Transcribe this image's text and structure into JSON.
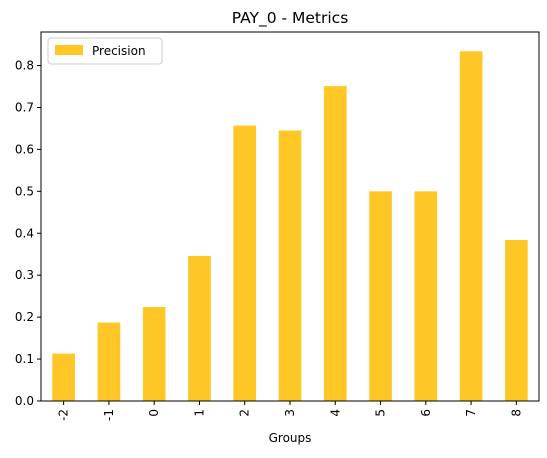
{
  "chart_data": {
    "type": "bar",
    "title": "PAY_0 - Metrics",
    "xlabel": "Groups",
    "ylabel": "",
    "categories": [
      "-2",
      "-1",
      "0",
      "1",
      "2",
      "3",
      "4",
      "5",
      "6",
      "7",
      "8"
    ],
    "series": [
      {
        "name": "Precision",
        "color": "#FFC726",
        "values": [
          0.113,
          0.187,
          0.224,
          0.346,
          0.657,
          0.645,
          0.751,
          0.5,
          0.5,
          0.834,
          0.384
        ]
      }
    ],
    "ylim": [
      0,
      0.88
    ],
    "yticks": [
      "0.0",
      "0.1",
      "0.2",
      "0.3",
      "0.4",
      "0.5",
      "0.6",
      "0.7",
      "0.8"
    ],
    "grid": false,
    "legend": "top-left"
  }
}
